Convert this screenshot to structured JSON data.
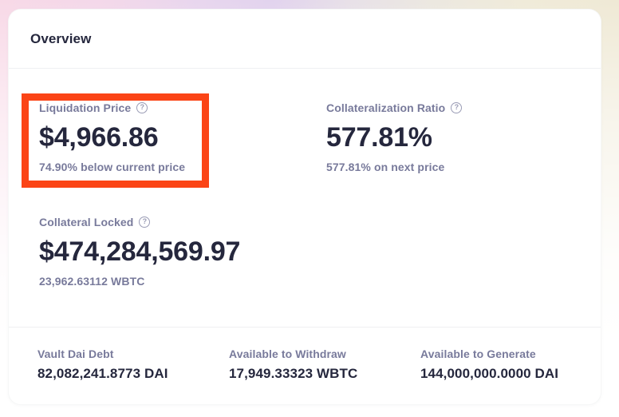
{
  "card": {
    "title": "Overview",
    "stats": [
      {
        "label": "Liquidation Price",
        "value": "$4,966.86",
        "subtext": "74.90% below current price",
        "highlighted": true
      },
      {
        "label": "Collateralization Ratio",
        "value": "577.81%",
        "subtext": "577.81% on next price",
        "highlighted": false
      },
      {
        "label": "Collateral Locked",
        "value": "$474,284,569.97",
        "subtext": "23,962.63112 WBTC",
        "highlighted": false
      }
    ],
    "footer": [
      {
        "label": "Vault Dai Debt",
        "value": "82,082,241.8773 DAI"
      },
      {
        "label": "Available to Withdraw",
        "value": "17,949.33323 WBTC"
      },
      {
        "label": "Available to Generate",
        "value": "144,000,000.0000 DAI"
      }
    ]
  },
  "icons": {
    "help_glyph": "?"
  },
  "colors": {
    "annotation_highlight": "#FB4416",
    "text_primary": "#25273D",
    "text_secondary": "#787A9B",
    "card_background": "#FFFFFF"
  }
}
